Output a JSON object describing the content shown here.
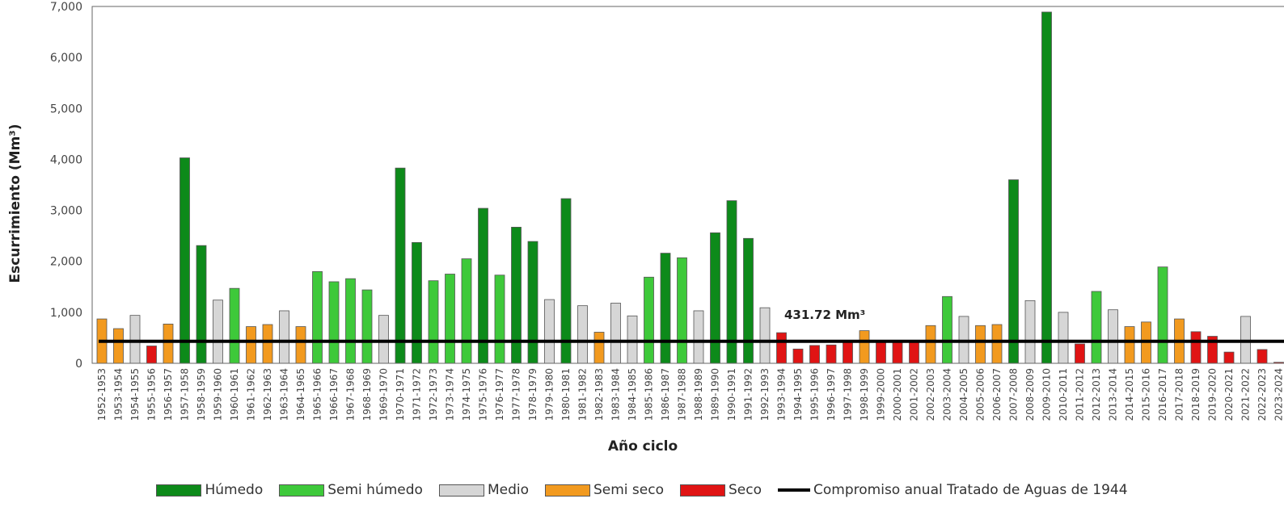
{
  "colors": {
    "Húmedo": "#0d8a1a",
    "Semi húmedo": "#3ec93a",
    "Medio": "#d6d6d6",
    "Semi seco": "#f29a1f",
    "Seco": "#e01414",
    "line": "#000000"
  },
  "chart_data": {
    "type": "bar",
    "xlabel": "Año ciclo",
    "ylabel": "Escurrimiento (Mm³)",
    "ylim": [
      0,
      7000
    ],
    "yticks": [
      "0",
      "1,000",
      "2,000",
      "3,000",
      "4,000",
      "5,000",
      "6,000",
      "7,000"
    ],
    "ytick_values": [
      0,
      1000,
      2000,
      3000,
      4000,
      5000,
      6000,
      7000
    ],
    "reference_line": {
      "value": 431.72,
      "label": "431.72 Mm³",
      "name": "Compromiso anual Tratado de Aguas de 1944"
    },
    "legend": [
      "Húmedo",
      "Semi húmedo",
      "Medio",
      "Semi seco",
      "Seco",
      "Compromiso anual Tratado de Aguas de 1944"
    ],
    "categories": [
      "1952-1953",
      "1953-1954",
      "1954-1955",
      "1955-1956",
      "1956-1957",
      "1957-1958",
      "1958-1959",
      "1959-1960",
      "1960-1961",
      "1961-1962",
      "1962-1963",
      "1963-1964",
      "1964-1965",
      "1965-1966",
      "1966-1967",
      "1967-1968",
      "1968-1969",
      "1969-1970",
      "1970-1971",
      "1971-1972",
      "1972-1973",
      "1973-1974",
      "1974-1975",
      "1975-1976",
      "1976-1977",
      "1977-1978",
      "1978-1979",
      "1979-1980",
      "1980-1981",
      "1981-1982",
      "1982-1983",
      "1983-1984",
      "1984-1985",
      "1985-1986",
      "1986-1987",
      "1987-1988",
      "1988-1989",
      "1989-1990",
      "1990-1991",
      "1991-1992",
      "1992-1993",
      "1993-1994",
      "1994-1995",
      "1995-1996",
      "1996-1997",
      "1997-1998",
      "1998-1999",
      "1999-2000",
      "2000-2001",
      "2001-2002",
      "2002-2003",
      "2003-2004",
      "2004-2005",
      "2005-2006",
      "2006-2007",
      "2007-2008",
      "2008-2009",
      "2009-2010",
      "2010-2011",
      "2011-2012",
      "2012-2013",
      "2013-2014",
      "2014-2015",
      "2015-2016",
      "2016-2017",
      "2017-2018",
      "2018-2019",
      "2019-2020",
      "2020-2021",
      "2021-2022",
      "2022-2023",
      "2023-2024"
    ],
    "values": [
      870,
      680,
      940,
      340,
      770,
      4030,
      2310,
      1240,
      1470,
      720,
      760,
      1030,
      720,
      1800,
      1600,
      1660,
      1440,
      940,
      3830,
      2370,
      1620,
      1750,
      2050,
      3040,
      1730,
      2670,
      2390,
      1250,
      3230,
      1130,
      610,
      1180,
      930,
      1690,
      2160,
      2070,
      1030,
      2560,
      3190,
      2450,
      1090,
      600,
      280,
      350,
      360,
      430,
      640,
      410,
      420,
      410,
      740,
      1310,
      920,
      740,
      760,
      3600,
      1230,
      6890,
      1000,
      380,
      1410,
      1050,
      720,
      810,
      1890,
      870,
      620,
      530,
      220,
      920,
      270,
      20
    ],
    "classes": [
      "Semi seco",
      "Semi seco",
      "Medio",
      "Seco",
      "Semi seco",
      "Húmedo",
      "Húmedo",
      "Medio",
      "Semi húmedo",
      "Semi seco",
      "Semi seco",
      "Medio",
      "Semi seco",
      "Semi húmedo",
      "Semi húmedo",
      "Semi húmedo",
      "Semi húmedo",
      "Medio",
      "Húmedo",
      "Húmedo",
      "Semi húmedo",
      "Semi húmedo",
      "Semi húmedo",
      "Húmedo",
      "Semi húmedo",
      "Húmedo",
      "Húmedo",
      "Medio",
      "Húmedo",
      "Medio",
      "Semi seco",
      "Medio",
      "Medio",
      "Semi húmedo",
      "Húmedo",
      "Semi húmedo",
      "Medio",
      "Húmedo",
      "Húmedo",
      "Húmedo",
      "Medio",
      "Seco",
      "Seco",
      "Seco",
      "Seco",
      "Seco",
      "Semi seco",
      "Seco",
      "Seco",
      "Seco",
      "Semi seco",
      "Semi húmedo",
      "Medio",
      "Semi seco",
      "Semi seco",
      "Húmedo",
      "Medio",
      "Húmedo",
      "Medio",
      "Seco",
      "Semi húmedo",
      "Medio",
      "Semi seco",
      "Semi seco",
      "Semi húmedo",
      "Semi seco",
      "Seco",
      "Seco",
      "Seco",
      "Medio",
      "Seco",
      "Seco"
    ]
  }
}
